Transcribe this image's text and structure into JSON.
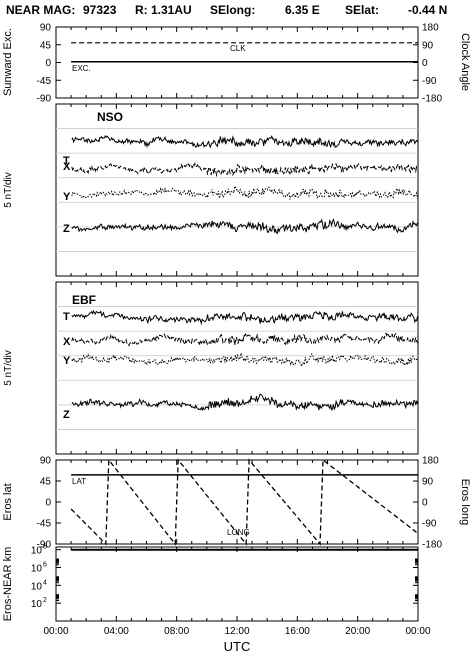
{
  "header": {
    "mission": "NEAR MAG:",
    "date": "97323",
    "r_label": "R: 1.31AU",
    "selong_label": "SElong:",
    "selong_value": "6.35 E",
    "selat_label": "SElat:",
    "selat_value": "-0.44 N"
  },
  "xaxis": {
    "label": "UTC",
    "ticks": [
      "00:00",
      "04:00",
      "08:00",
      "12:00",
      "16:00",
      "20:00",
      "00:00"
    ],
    "tick_hours": [
      0,
      4,
      8,
      12,
      16,
      20,
      24
    ]
  },
  "colors": {
    "ink": "#000000",
    "grid": "#c8c8c8"
  },
  "chart_data": [
    {
      "id": "angles",
      "type": "line",
      "ylabel_left": "Sunward Exc.",
      "ylabel_right": "Clock Angle",
      "yticks_left": [
        "90",
        "45",
        "0",
        "-45",
        "-90"
      ],
      "yticks_left_values": [
        90,
        45,
        0,
        -45,
        -90
      ],
      "yticks_right": [
        "180",
        "90",
        "0",
        "-90",
        "-180"
      ],
      "ylim": [
        -90,
        90
      ],
      "series": [
        {
          "name": "CLK",
          "style": "dashed",
          "axis": "right",
          "x": [
            1,
            24
          ],
          "y": [
            100,
            100
          ]
        },
        {
          "name": "EXC.",
          "style": "solid",
          "axis": "left",
          "x": [
            1,
            24
          ],
          "y": [
            2,
            2
          ]
        }
      ]
    },
    {
      "id": "nso",
      "type": "line",
      "title": "NSO",
      "ylabel": "5 nT/div",
      "series_labels": [
        "T",
        "X",
        "Y",
        "Z"
      ],
      "series_styles": [
        "solid",
        "dashed",
        "dotted",
        "solid"
      ],
      "series_baseline_div": [
        1.5,
        2.65,
        3.7,
        5.0
      ],
      "n_div": 7
    },
    {
      "id": "ebf",
      "type": "line",
      "title": "EBF",
      "ylabel": "5 nT/div",
      "series_labels": [
        "T",
        "X",
        "Y",
        "Z"
      ],
      "series_styles": [
        "solid",
        "dashed",
        "dotted",
        "solid"
      ],
      "series_baseline_div": [
        1.45,
        2.35,
        3.15,
        4.95
      ],
      "n_div": 7
    },
    {
      "id": "eros",
      "type": "line",
      "ylabel_left": "Eros lat",
      "ylabel_right": "Eros long",
      "yticks_left": [
        "90",
        "45",
        "0",
        "-45",
        "-90"
      ],
      "yticks_left_values": [
        90,
        45,
        0,
        -45,
        -90
      ],
      "yticks_right": [
        "180",
        "90",
        "0",
        "-90",
        "-180"
      ],
      "ylim": [
        -90,
        90
      ],
      "series": [
        {
          "name": "LAT",
          "style": "solid",
          "axis": "left",
          "x": [
            1,
            24
          ],
          "y": [
            58,
            58
          ]
        },
        {
          "name": "LONG",
          "style": "dashed",
          "axis": "right",
          "x": [
            1,
            3.3,
            3.5,
            7.9,
            8.1,
            12.6,
            12.8,
            17.5,
            17.7,
            23.9
          ],
          "y": [
            -30,
            -180,
            180,
            -180,
            180,
            -180,
            180,
            -180,
            180,
            -130
          ]
        }
      ]
    },
    {
      "id": "range",
      "type": "line",
      "ylabel": "Eros-NEAR km",
      "yscale": "log",
      "yticks": [
        "10",
        "10",
        "10",
        "10"
      ],
      "yticks_exp": [
        "8",
        "6",
        "4",
        "2"
      ],
      "ylim_exp": [
        0,
        8.3
      ],
      "series": [
        {
          "name": "range",
          "style": "solid",
          "x": [
            1,
            24
          ],
          "y": [
            8,
            8
          ]
        }
      ]
    }
  ]
}
